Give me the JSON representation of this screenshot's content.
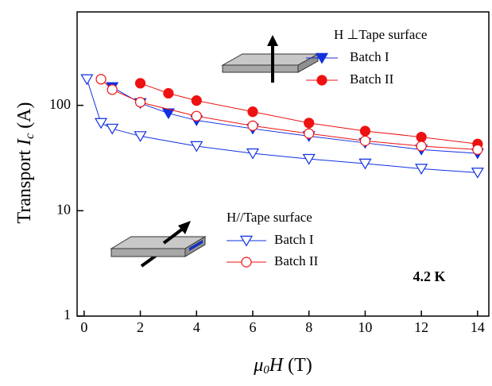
{
  "chart_data": {
    "type": "line",
    "x_label": {
      "symbol": "μ",
      "subscript": "0",
      "variable": "H",
      "unit": " (T)"
    },
    "y_label": {
      "text": "Transport ",
      "symbol": "I",
      "subscript": "c",
      "unit": " (A)"
    },
    "annotation": "4.2 K",
    "xlim": [
      -0.25,
      14.4
    ],
    "xticks": [
      0,
      2,
      4,
      6,
      8,
      10,
      12,
      14
    ],
    "ylim": [
      1,
      770
    ],
    "yticks": [
      1,
      10,
      100
    ],
    "ylog": true,
    "legend_titles": [
      "H ⊥Tape surface",
      "H//Tape surface"
    ],
    "series": [
      {
        "name": "Batch I",
        "legend": 0,
        "color": "#1030e0",
        "marker": "triangle-down",
        "filled": true,
        "x": [
          1,
          2,
          3,
          4,
          6,
          8,
          10,
          12,
          14
        ],
        "values": [
          149,
          105,
          84,
          72,
          60,
          51,
          44,
          38,
          35
        ]
      },
      {
        "name": "Batch II",
        "legend": 0,
        "color": "#ee1111",
        "marker": "circle",
        "filled": true,
        "x": [
          2,
          3,
          4,
          6,
          8,
          10,
          12,
          14
        ],
        "values": [
          162,
          130,
          111,
          87,
          68,
          57,
          50,
          43
        ]
      },
      {
        "name": "Batch I",
        "legend": 1,
        "color": "#1030e0",
        "marker": "triangle-down",
        "filled": false,
        "x": [
          0.1,
          0.6,
          1,
          2,
          4,
          6,
          8,
          10,
          12,
          14
        ],
        "values": [
          177,
          68,
          60,
          51,
          41,
          35,
          31,
          28,
          25,
          23
        ]
      },
      {
        "name": "Batch II",
        "legend": 1,
        "color": "#ee1111",
        "marker": "circle",
        "filled": false,
        "x": [
          0.6,
          1,
          2,
          4,
          6,
          8,
          10,
          12,
          14
        ],
        "values": [
          177,
          141,
          107,
          79,
          64,
          54,
          46,
          41,
          38
        ]
      }
    ]
  }
}
